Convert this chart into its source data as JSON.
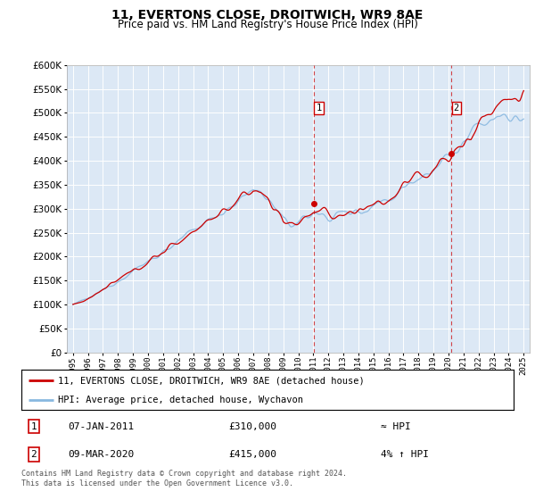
{
  "title": "11, EVERTONS CLOSE, DROITWICH, WR9 8AE",
  "subtitle": "Price paid vs. HM Land Registry's House Price Index (HPI)",
  "legend_line1": "11, EVERTONS CLOSE, DROITWICH, WR9 8AE (detached house)",
  "legend_line2": "HPI: Average price, detached house, Wychavon",
  "annotation1_label": "1",
  "annotation1_date": "07-JAN-2011",
  "annotation1_price": "£310,000",
  "annotation1_hpi": "≈ HPI",
  "annotation2_label": "2",
  "annotation2_date": "09-MAR-2020",
  "annotation2_price": "£415,000",
  "annotation2_hpi": "4% ↑ HPI",
  "footer": "Contains HM Land Registry data © Crown copyright and database right 2024.\nThis data is licensed under the Open Government Licence v3.0.",
  "price_line_color": "#cc0000",
  "hpi_line_color": "#88b8e0",
  "vline_color": "#cc0000",
  "background_color": "#ffffff",
  "plot_bg_color": "#dce8f5",
  "ylim": [
    0,
    600000
  ],
  "yticks": [
    0,
    50000,
    100000,
    150000,
    200000,
    250000,
    300000,
    350000,
    400000,
    450000,
    500000,
    550000,
    600000
  ],
  "sale1_x": 2011.04,
  "sale1_y": 310000,
  "sale2_x": 2020.19,
  "sale2_y": 415000,
  "xmin": 1994.6,
  "xmax": 2025.4,
  "xticks": [
    1995,
    1996,
    1997,
    1998,
    1999,
    2000,
    2001,
    2002,
    2003,
    2004,
    2005,
    2006,
    2007,
    2008,
    2009,
    2010,
    2011,
    2012,
    2013,
    2014,
    2015,
    2016,
    2017,
    2018,
    2019,
    2020,
    2021,
    2022,
    2023,
    2024,
    2025
  ]
}
